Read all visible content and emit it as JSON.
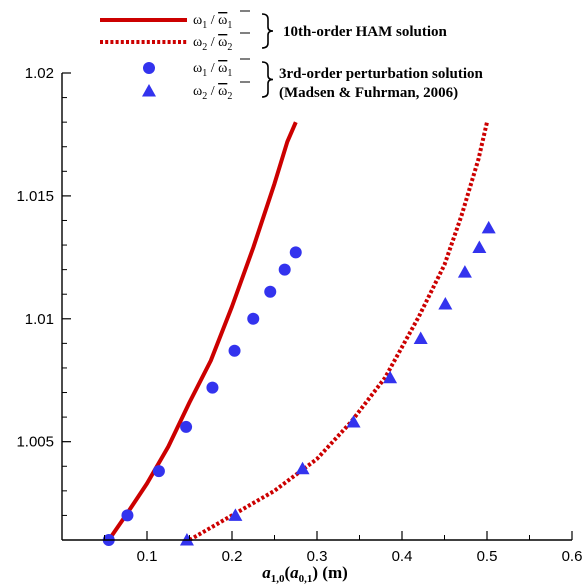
{
  "chart_data": {
    "type": "line",
    "xlabel_parts": {
      "a1": "a",
      "sub1": "1,0",
      "open": "(",
      "a2": "a",
      "sub2": "0,1",
      "close": ") (m)"
    },
    "xlim": [
      0,
      0.6
    ],
    "ylim": [
      1.001,
      1.02
    ],
    "xticks": [
      0.1,
      0.2,
      0.3,
      0.4,
      0.5,
      0.6
    ],
    "xtick_labels": [
      "0.1",
      "0.2",
      "0.3",
      "0.4",
      "0.5",
      "0.6"
    ],
    "yticks": [
      1.005,
      1.01,
      1.015,
      1.02
    ],
    "ytick_labels": [
      "1.005",
      "1.01",
      "1.015",
      "1.02"
    ],
    "legend": [
      {
        "symbol": "ω1 / ω̄1",
        "group": 0
      },
      {
        "symbol": "ω2 / ω̄2",
        "group": 0
      },
      {
        "symbol": "ω1 / ω̄1",
        "group": 1
      },
      {
        "symbol": "ω2 / ω̄2",
        "group": 1
      }
    ],
    "legend_groups": [
      {
        "text": "10th-order HAM solution"
      },
      {
        "text": "3rd-order perturbation solution",
        "text2": "(Madsen & Fuhrman, 2006)"
      }
    ],
    "series": [
      {
        "style": "solid-line",
        "color": "#cc0000",
        "x": [
          0.055,
          0.075,
          0.1,
          0.125,
          0.15,
          0.175,
          0.2,
          0.225,
          0.25,
          0.265,
          0.275
        ],
        "y": [
          1.001,
          1.002,
          1.0033,
          1.0048,
          1.0066,
          1.0083,
          1.0105,
          1.0129,
          1.0155,
          1.0172,
          1.018
        ]
      },
      {
        "style": "dotted-line",
        "color": "#cc0000",
        "x": [
          0.15,
          0.2,
          0.25,
          0.3,
          0.34,
          0.38,
          0.42,
          0.45,
          0.47,
          0.49,
          0.5
        ],
        "y": [
          1.001,
          1.002,
          1.003,
          1.0043,
          1.0058,
          1.0076,
          1.0101,
          1.0122,
          1.0142,
          1.0165,
          1.018
        ]
      },
      {
        "style": "circle-marker",
        "color": "#3333ee",
        "x": [
          0.055,
          0.077,
          0.114,
          0.146,
          0.177,
          0.203,
          0.225,
          0.245,
          0.262,
          0.275
        ],
        "y": [
          1.001,
          1.002,
          1.0038,
          1.0056,
          1.0072,
          1.0087,
          1.01,
          1.0111,
          1.012,
          1.0127
        ]
      },
      {
        "style": "triangle-marker",
        "color": "#3333ee",
        "x": [
          0.147,
          0.204,
          0.283,
          0.343,
          0.386,
          0.422,
          0.451,
          0.474,
          0.491,
          0.502
        ],
        "y": [
          1.001,
          1.002,
          1.0039,
          1.0058,
          1.0076,
          1.0092,
          1.0106,
          1.0119,
          1.0129,
          1.0137
        ]
      }
    ]
  }
}
